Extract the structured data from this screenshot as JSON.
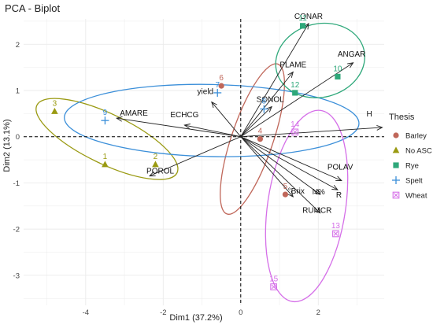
{
  "chart_data": {
    "type": "scatter",
    "subtype": "pca-biplot",
    "title": "PCA - Biplot",
    "xlabel": "Dim1 (37.2%)",
    "ylabel": "Dim2 (13.1%)",
    "xlim": [
      -5.6,
      3.7
    ],
    "ylim": [
      -3.65,
      2.55
    ],
    "xticks": [
      -4,
      -2,
      0,
      2
    ],
    "yticks": [
      -3,
      -2,
      -1,
      0,
      1,
      2
    ],
    "grid": true,
    "legend": {
      "title": "Thesis",
      "placement": "right",
      "entries": [
        {
          "name": "Barley",
          "color": "#c0675a",
          "marker": "circle"
        },
        {
          "name": "No ASC",
          "color": "#9a9a12",
          "marker": "triangle"
        },
        {
          "name": "Rye",
          "color": "#2ea87a",
          "marker": "square"
        },
        {
          "name": "Spelt",
          "color": "#3b8fd9",
          "marker": "plus"
        },
        {
          "name": "Wheat",
          "color": "#d56fe8",
          "marker": "boxed-x"
        }
      ]
    },
    "individuals": [
      {
        "label": "1",
        "group": "No ASC",
        "x": -3.5,
        "y": -0.6
      },
      {
        "label": "2",
        "group": "No ASC",
        "x": -2.2,
        "y": -0.6
      },
      {
        "label": "3",
        "group": "No ASC",
        "x": -4.8,
        "y": 0.55
      },
      {
        "label": "4",
        "group": "Barley",
        "x": 0.5,
        "y": -0.05
      },
      {
        "label": "5",
        "group": "Barley",
        "x": 1.15,
        "y": -1.25
      },
      {
        "label": "6",
        "group": "Barley",
        "x": -0.5,
        "y": 1.1
      },
      {
        "label": "7",
        "group": "Spelt",
        "x": -0.6,
        "y": 0.95
      },
      {
        "label": "8",
        "group": "Spelt",
        "x": 0.6,
        "y": 0.6
      },
      {
        "label": "9",
        "group": "Spelt",
        "x": -3.5,
        "y": 0.35
      },
      {
        "label": "10",
        "group": "Rye",
        "x": 2.5,
        "y": 1.3
      },
      {
        "label": "11",
        "group": "Rye",
        "x": 1.6,
        "y": 2.4
      },
      {
        "label": "12",
        "group": "Rye",
        "x": 1.4,
        "y": 0.95
      },
      {
        "label": "13",
        "group": "Wheat",
        "x": 2.45,
        "y": -2.1
      },
      {
        "label": "14",
        "group": "Wheat",
        "x": 1.4,
        "y": 0.1
      },
      {
        "label": "15",
        "group": "Wheat",
        "x": 0.85,
        "y": -3.25
      }
    ],
    "variables": [
      {
        "name": "CONAR",
        "x": 1.75,
        "y": 2.45
      },
      {
        "name": "ANGAR",
        "x": 2.9,
        "y": 1.6
      },
      {
        "name": "PLAME",
        "x": 1.35,
        "y": 1.4
      },
      {
        "name": "SONOL",
        "x": 0.8,
        "y": 0.65
      },
      {
        "name": "yield",
        "x": -0.75,
        "y": 0.75
      },
      {
        "name": "AMARE",
        "x": -3.2,
        "y": 0.4
      },
      {
        "name": "ECHCG",
        "x": -1.45,
        "y": 0.25
      },
      {
        "name": "H",
        "x": 3.65,
        "y": 0.2
      },
      {
        "name": "POROL",
        "x": -2.35,
        "y": -0.85
      },
      {
        "name": "POLAV",
        "x": 2.6,
        "y": -0.95
      },
      {
        "name": "R",
        "x": 2.5,
        "y": -1.15
      },
      {
        "name": "N%",
        "x": 2.05,
        "y": -1.25
      },
      {
        "name": "°Brix",
        "x": 1.35,
        "y": -1.3
      },
      {
        "name": "RUMCR",
        "x": 2.05,
        "y": -1.65
      }
    ],
    "ellipses": [
      {
        "group": "No ASC",
        "cx": -3.45,
        "cy": -0.05,
        "rx": 1.95,
        "ry": 0.55,
        "angle": -22
      },
      {
        "group": "Barley",
        "cx": 0.3,
        "cy": -0.05,
        "rx": 1.75,
        "ry": 0.52,
        "angle": 68
      },
      {
        "group": "Spelt",
        "cx": -0.75,
        "cy": 0.35,
        "rx": 3.8,
        "ry": 0.78,
        "angle": -1
      },
      {
        "group": "Rye",
        "cx": 2.05,
        "cy": 1.65,
        "rx": 1.15,
        "ry": 0.8,
        "angle": 12
      },
      {
        "group": "Wheat",
        "cx": 1.7,
        "cy": -1.5,
        "rx": 2.1,
        "ry": 1.0,
        "angle": 80
      }
    ]
  }
}
